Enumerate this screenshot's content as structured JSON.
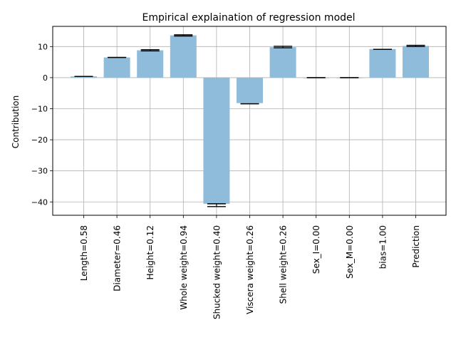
{
  "chart_data": {
    "type": "bar",
    "title": "Empirical explaination of regression model",
    "xlabel": "",
    "ylabel": "Contribution",
    "ylim": [
      -44.3,
      16.5
    ],
    "yticks": [
      10,
      0,
      -10,
      -20,
      -30,
      -40
    ],
    "ytick_labels": [
      "10",
      "0",
      "−10",
      "−20",
      "−30",
      "−40"
    ],
    "grid": true,
    "categories": [
      "Length=0.58",
      "Diameter=0.46",
      "Height=0.12",
      "Whole weight=0.94",
      "Shucked weight=0.40",
      "Viscera weight=0.26",
      "Shell weight=0.26",
      "Sex_I=0.00",
      "Sex_M=0.00",
      "bias=1.00",
      "Prediction"
    ],
    "values": [
      0.4,
      6.5,
      8.8,
      13.6,
      -40.6,
      -8.2,
      9.8,
      0.0,
      0.0,
      9.2,
      10.2
    ],
    "error_bars": [
      [
        0.4,
        0.4
      ],
      [
        6.5,
        6.5
      ],
      [
        8.6,
        9.0
      ],
      [
        13.4,
        13.8
      ],
      [
        -41.5,
        -40.6
      ],
      [
        -8.4,
        -8.4
      ],
      [
        9.6,
        10.1
      ],
      [
        0.0,
        0.0
      ],
      [
        0.0,
        0.0
      ],
      [
        9.1,
        9.1
      ],
      [
        10.0,
        10.4
      ]
    ],
    "colors": {
      "bar": "#8fbcdb",
      "grid": "#b0b0b0",
      "axis": "#000000",
      "errorbar": "#000000"
    }
  }
}
